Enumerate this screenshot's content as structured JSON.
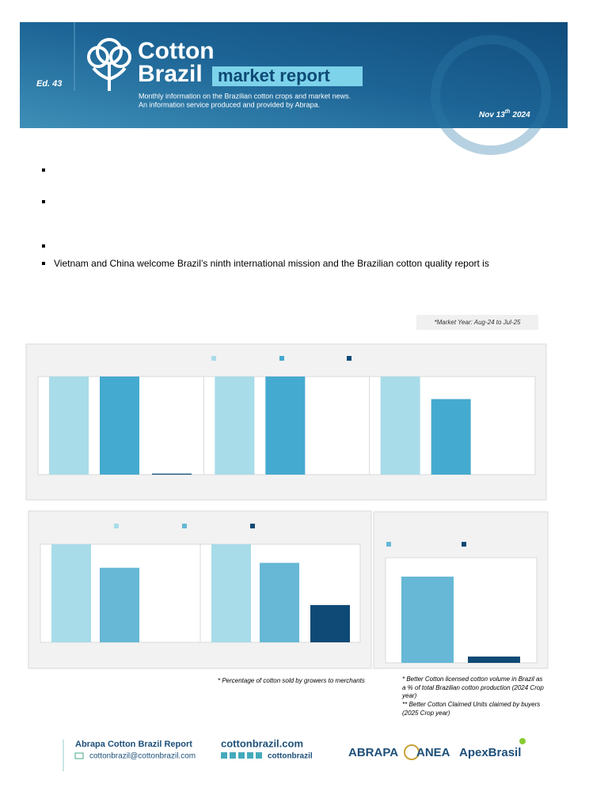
{
  "header": {
    "edition": "Ed. 43",
    "brand_line1": "Cotton",
    "brand_line2": "Brazil",
    "brand_tag": "market report",
    "tagline1": "Monthly information on the Brazilian cotton crops and market news.",
    "tagline2": "An information service produced and provided by Abrapa.",
    "date_main": "Nov 13",
    "date_sup": "th",
    "date_year": "2024"
  },
  "bullets": [
    "Vietnam and China welcome Brazil’s ninth international mission and the Brazilian cotton quality report is"
  ],
  "market_year_note": "*Market Year: Aug-24 to Jul-25",
  "chart_data": [
    {
      "type": "bar",
      "ylim": [
        0,
        100
      ],
      "categories": [
        null,
        null,
        null
      ],
      "series": [
        {
          "color": "#a8dce8",
          "values": [
            100,
            100,
            100
          ]
        },
        {
          "color": "#45aacf",
          "values": [
            100,
            100,
            77
          ]
        },
        {
          "color": "#0e4a75",
          "values": [
            1,
            0,
            0
          ]
        }
      ]
    },
    {
      "type": "bar",
      "ylim": [
        0,
        100
      ],
      "categories": [
        null,
        null
      ],
      "series": [
        {
          "color": "#a8dce8",
          "values": [
            100,
            100
          ]
        },
        {
          "color": "#66b8d6",
          "values": [
            76,
            81
          ]
        },
        {
          "color": "#0e4a75",
          "values": [
            0,
            38
          ]
        }
      ]
    },
    {
      "type": "bar",
      "ylim": [
        0,
        100
      ],
      "categories": [
        null
      ],
      "series": [
        {
          "color": "#66b8d6",
          "values": [
            82
          ]
        },
        {
          "color": "#0e4a75",
          "values": [
            6
          ]
        }
      ]
    }
  ],
  "footnotes": {
    "chart2": "* Percentage of cotton sold by growers to merchants",
    "chart3": [
      "* Better Cotton licensed cotton volume in Brazil as",
      "a % of total Brazilian cotton production (2024 Crop",
      "year)",
      "** Better Cotton Claimed Units claimed by buyers",
      "(2025 Crop year)"
    ]
  },
  "footer": {
    "report": "Abrapa Cotton Brazil Report",
    "email": "cottonbrazil@cottonbrazil.com",
    "site": "cottonbrazil.com",
    "social": "cottonbrazil",
    "logo1": "ABRAPA",
    "logo2": "ANEA",
    "logo3": "ApexBrasil"
  }
}
